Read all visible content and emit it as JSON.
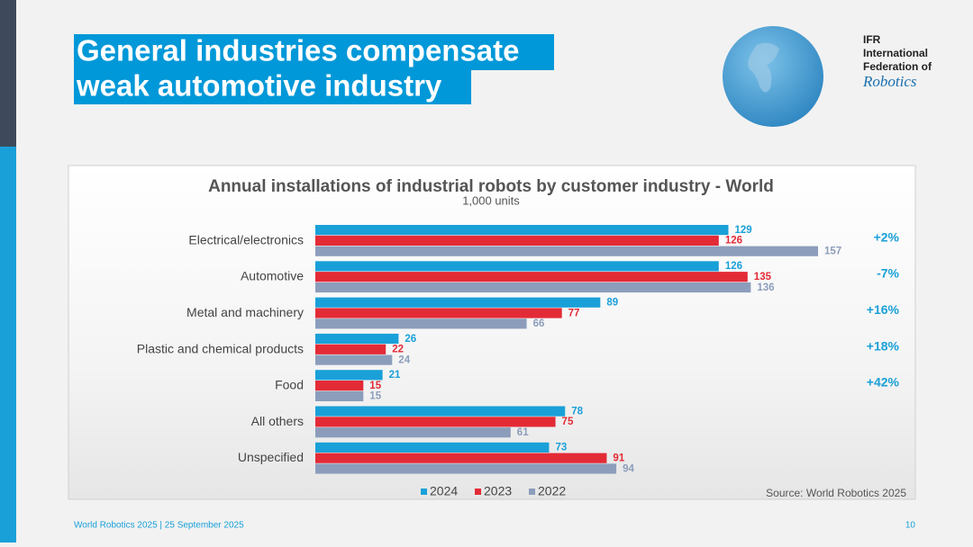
{
  "header": {
    "title_lines": [
      "General industries compensate",
      "weak automotive industry"
    ]
  },
  "logo": {
    "lines": [
      "IFR",
      "International",
      "Federation of",
      "Robotics"
    ]
  },
  "footer": {
    "text": "World Robotics 2025  | 25 September 2025",
    "page": "10"
  },
  "chart_data": {
    "type": "bar",
    "orientation": "horizontal",
    "title": "Annual installations of industrial robots by customer industry - World",
    "subtitle": "1,000 units",
    "categories": [
      "Electrical/electronics",
      "Automotive",
      "Metal and machinery",
      "Plastic and chemical products",
      "Food",
      "All others",
      "Unspecified"
    ],
    "series": [
      {
        "name": "2024",
        "color": "#1aa0d8",
        "values": [
          129,
          126,
          89,
          26,
          21,
          78,
          73
        ]
      },
      {
        "name": "2023",
        "color": "#e32b36",
        "values": [
          126,
          135,
          77,
          22,
          15,
          75,
          91
        ]
      },
      {
        "name": "2022",
        "color": "#8c9dbb",
        "values": [
          157,
          136,
          66,
          24,
          15,
          61,
          94
        ]
      }
    ],
    "annotations": [
      "+2%",
      "-7%",
      "+16%",
      "+18%",
      "+42%"
    ],
    "annotation_color": "#1aa0d8",
    "legend": "bottom",
    "source": "Source: World Robotics 2025"
  }
}
